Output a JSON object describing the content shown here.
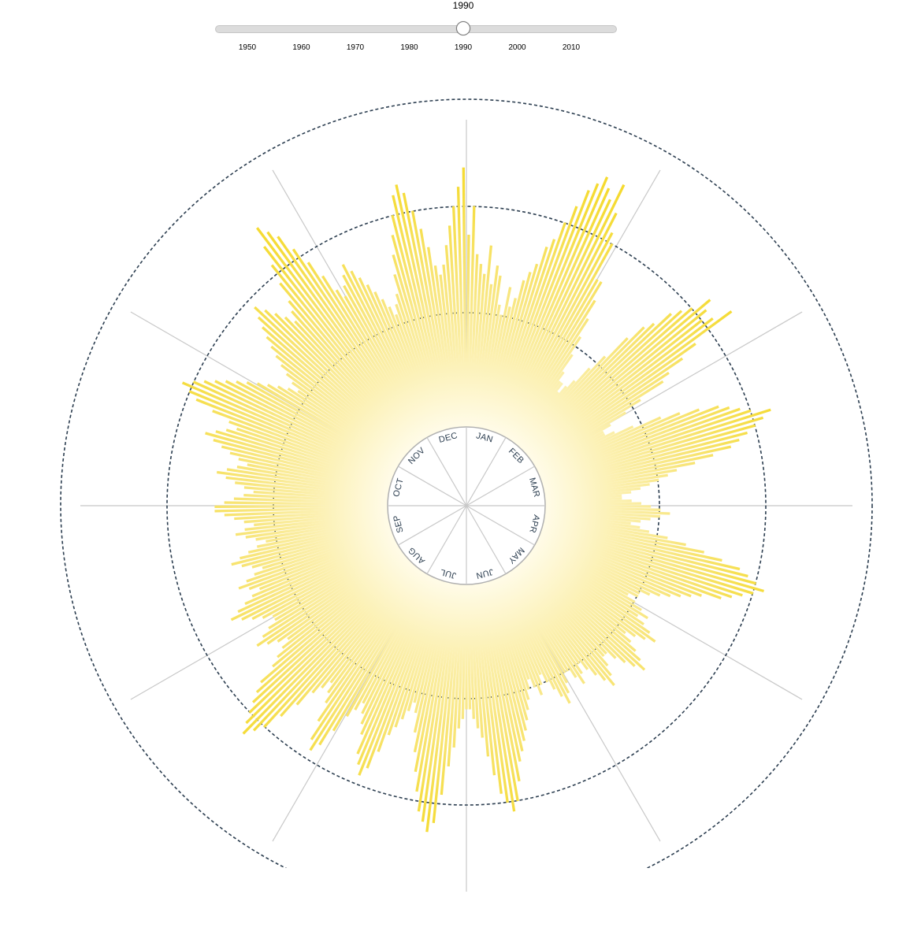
{
  "slider": {
    "value": 1990,
    "min": 1943,
    "max": 2017,
    "ticks": [
      "1950",
      "1960",
      "1970",
      "1980",
      "1990",
      "2000",
      "2010"
    ]
  },
  "chart_data": {
    "type": "radial-bar",
    "title": "",
    "selected_year": "1990",
    "month_labels": [
      "JAN",
      "FEB",
      "MAR",
      "APR",
      "MAY",
      "JUN",
      "JUL",
      "AUG",
      "SEP",
      "OCT",
      "NOV",
      "DEC"
    ],
    "reference_rings": [
      1,
      2,
      3
    ],
    "bar_color": "#f5dc3a",
    "ring_color": "#2c3e50",
    "spoke_color": "#c8c8c8",
    "days_per_bar": 1,
    "monthly_profile": [
      {
        "month": "JAN",
        "values": [
          2.7,
          3.0,
          2.5,
          2.4,
          2.3,
          2.6,
          2.2,
          2.4,
          2.3,
          2.0,
          1.9,
          2.2,
          2.0,
          2.1,
          2.3,
          2.4,
          2.5,
          2.7,
          2.8,
          3.0,
          3.2,
          3.4,
          3.5,
          3.6,
          3.5,
          3.4,
          3.6,
          3.3,
          3.1,
          3.0,
          2.6
        ]
      },
      {
        "month": "FEB",
        "values": [
          2.6,
          2.4,
          2.2,
          2.0,
          1.8,
          1.6,
          1.5,
          1.5,
          1.4,
          1.5,
          1.6,
          1.8,
          2.0,
          2.3,
          2.5,
          2.6,
          2.8,
          2.9,
          3.0,
          3.2,
          3.1,
          3.0,
          3.1,
          3.3,
          2.8,
          2.6,
          2.4,
          2.3
        ]
      },
      {
        "month": "MAR",
        "values": [
          2.0,
          1.8,
          1.6,
          1.5,
          1.5,
          1.6,
          1.8,
          2.1,
          2.3,
          2.5,
          2.7,
          2.8,
          2.9,
          3.0,
          3.2,
          3.1,
          3.0,
          2.9,
          2.8,
          2.7,
          2.5,
          2.3,
          2.1,
          2.0,
          1.9,
          1.8,
          1.7,
          1.6,
          1.5,
          1.5,
          1.6
        ]
      },
      {
        "month": "APR",
        "values": [
          1.7,
          1.8,
          1.9,
          2.0,
          1.9,
          1.8,
          1.7,
          1.6,
          1.7,
          1.8,
          2.0,
          2.2,
          2.4,
          2.6,
          2.8,
          2.9,
          3.0,
          3.1,
          3.0,
          2.9,
          2.8,
          2.7,
          2.5,
          2.4,
          2.3,
          2.2,
          2.1,
          2.0,
          1.9,
          1.9
        ]
      },
      {
        "month": "MAY",
        "values": [
          1.8,
          1.9,
          2.0,
          2.1,
          2.0,
          2.1,
          2.2,
          2.3,
          2.2,
          2.1,
          2.0,
          2.1,
          2.2,
          2.3,
          2.4,
          2.3,
          2.2,
          2.1,
          2.0,
          2.0,
          2.1,
          2.2,
          2.3,
          2.2,
          2.1,
          2.0,
          1.9,
          2.0,
          2.1,
          2.0,
          1.9
        ]
      },
      {
        "month": "JUN",
        "values": [
          1.9,
          2.0,
          2.1,
          2.2,
          2.1,
          2.0,
          1.9,
          1.8,
          1.9,
          2.0,
          1.9,
          1.8,
          1.9,
          2.0,
          2.1,
          2.2,
          2.3,
          2.4,
          2.5,
          2.6,
          2.8,
          3.0,
          3.1,
          3.0,
          2.9,
          2.7,
          2.5,
          2.3,
          2.2,
          2.1
        ]
      },
      {
        "month": "JUL",
        "values": [
          2.0,
          2.0,
          2.1,
          2.2,
          2.4,
          2.6,
          2.9,
          3.2,
          3.3,
          3.2,
          3.1,
          2.9,
          2.7,
          2.5,
          2.3,
          2.1,
          2.0,
          2.1,
          2.2,
          2.3,
          2.4,
          2.6,
          2.8,
          2.9,
          2.8,
          2.7,
          2.5,
          2.4,
          2.3,
          2.2,
          2.3
        ]
      },
      {
        "month": "AUG",
        "values": [
          2.4,
          2.6,
          2.8,
          2.9,
          2.8,
          2.6,
          2.4,
          2.3,
          2.2,
          2.3,
          2.4,
          2.6,
          2.8,
          3.0,
          3.1,
          3.2,
          3.1,
          3.0,
          2.9,
          2.8,
          2.7,
          2.5,
          2.4,
          2.3,
          2.2,
          2.3,
          2.4,
          2.5,
          2.4,
          2.3,
          2.2
        ]
      },
      {
        "month": "SEP",
        "values": [
          2.2,
          2.3,
          2.4,
          2.5,
          2.6,
          2.5,
          2.4,
          2.3,
          2.2,
          2.3,
          2.4,
          2.3,
          2.2,
          2.1,
          2.2,
          2.3,
          2.4,
          2.3,
          2.2,
          2.1,
          2.0,
          2.1,
          2.2,
          2.3,
          2.2,
          2.1,
          2.2,
          2.3,
          2.4,
          2.5
        ]
      },
      {
        "month": "OCT",
        "values": [
          2.5,
          2.4,
          2.3,
          2.2,
          2.1,
          2.2,
          2.3,
          2.4,
          2.5,
          2.4,
          2.3,
          2.2,
          2.3,
          2.4,
          2.5,
          2.6,
          2.7,
          2.6,
          2.5,
          2.4,
          2.5,
          2.7,
          2.9,
          3.0,
          3.1,
          3.0,
          2.9,
          2.8,
          2.7,
          2.6,
          2.5
        ]
      },
      {
        "month": "NOV",
        "values": [
          2.4,
          2.3,
          2.2,
          2.1,
          2.0,
          2.1,
          2.2,
          2.3,
          2.4,
          2.5,
          2.6,
          2.7,
          2.8,
          2.9,
          2.8,
          2.7,
          2.6,
          2.5,
          2.6,
          2.7,
          2.9,
          3.1,
          3.3,
          3.5,
          3.4,
          3.3,
          3.1,
          2.9,
          2.7,
          2.5
        ]
      },
      {
        "month": "DEC",
        "values": [
          2.4,
          2.5,
          2.6,
          2.7,
          2.6,
          2.5,
          2.4,
          2.3,
          2.2,
          2.1,
          2.0,
          2.1,
          2.2,
          2.4,
          2.6,
          2.8,
          3.0,
          3.2,
          3.3,
          3.2,
          3.0,
          2.8,
          2.6,
          2.4,
          2.3,
          2.4,
          2.6,
          2.8,
          3.0,
          3.2,
          3.4
        ]
      }
    ]
  }
}
